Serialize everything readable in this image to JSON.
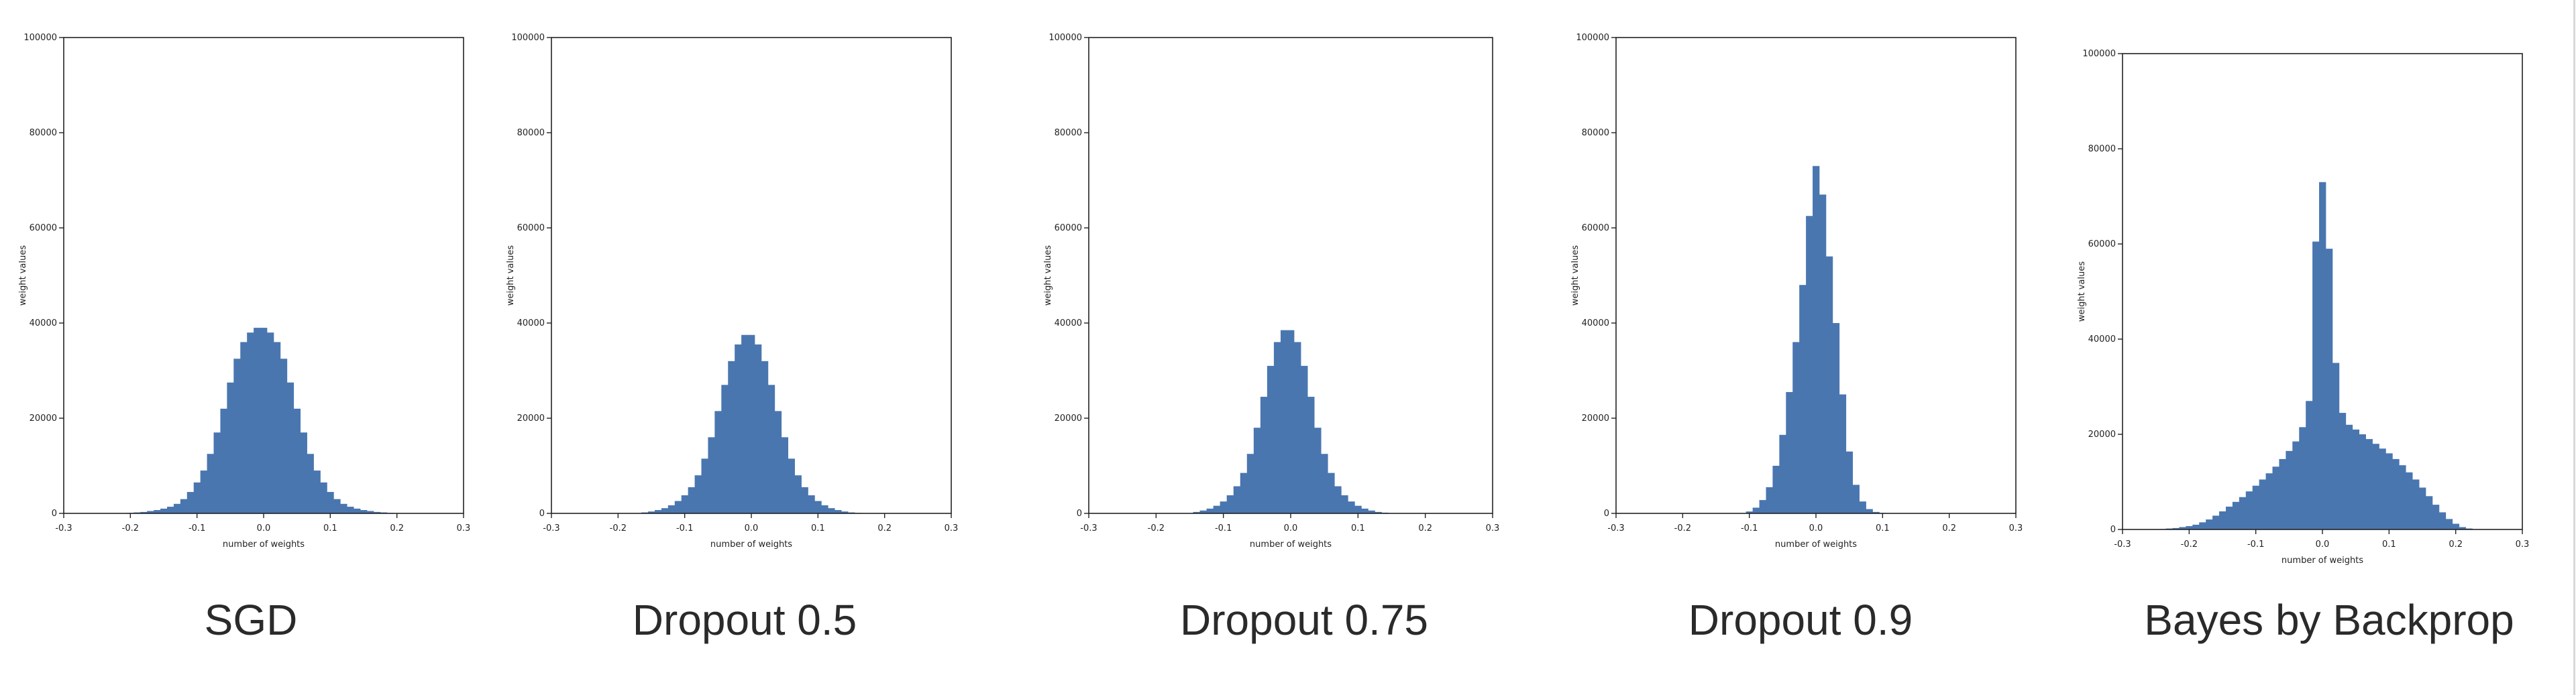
{
  "chart_data": [
    {
      "type": "bar",
      "caption": "SGD",
      "xlabel": "number of weights",
      "ylabel": "weight values",
      "xlim": [
        -0.3,
        0.3
      ],
      "ylim": [
        0,
        100000
      ],
      "xticks": [
        "-0.3",
        "-0.2",
        "-0.1",
        "0.0",
        "0.1",
        "0.2",
        "0.3"
      ],
      "yticks": [
        "0",
        "20000",
        "40000",
        "60000",
        "80000",
        "100000"
      ],
      "bin_centers": [
        -0.2,
        -0.19,
        -0.18,
        -0.17,
        -0.16,
        -0.15,
        -0.14,
        -0.13,
        -0.12,
        -0.11,
        -0.1,
        -0.09,
        -0.08,
        -0.07,
        -0.06,
        -0.05,
        -0.04,
        -0.03,
        -0.02,
        -0.01,
        0.0,
        0.01,
        0.02,
        0.03,
        0.04,
        0.05,
        0.06,
        0.07,
        0.08,
        0.09,
        0.1,
        0.11,
        0.12,
        0.13,
        0.14,
        0.15,
        0.16,
        0.17,
        0.18,
        0.19,
        0.2
      ],
      "values": [
        100,
        200,
        300,
        500,
        700,
        1000,
        1400,
        2000,
        3000,
        4500,
        6500,
        9000,
        12500,
        17000,
        22000,
        27500,
        32500,
        36000,
        38000,
        39000,
        39000,
        38000,
        36000,
        32500,
        27500,
        22000,
        17000,
        12500,
        9000,
        6500,
        4500,
        3000,
        2000,
        1400,
        1000,
        700,
        500,
        300,
        200,
        100,
        60
      ]
    },
    {
      "type": "bar",
      "caption": "Dropout 0.5",
      "xlabel": "number of weights",
      "ylabel": "weight values",
      "xlim": [
        -0.3,
        0.3
      ],
      "ylim": [
        0,
        100000
      ],
      "xticks": [
        "-0.3",
        "-0.2",
        "-0.1",
        "0.0",
        "0.1",
        "0.2",
        "0.3"
      ],
      "yticks": [
        "0",
        "20000",
        "40000",
        "60000",
        "80000",
        "100000"
      ],
      "bin_centers": [
        -0.16,
        -0.15,
        -0.14,
        -0.13,
        -0.12,
        -0.11,
        -0.1,
        -0.09,
        -0.08,
        -0.07,
        -0.06,
        -0.05,
        -0.04,
        -0.03,
        -0.02,
        -0.01,
        0.0,
        0.01,
        0.02,
        0.03,
        0.04,
        0.05,
        0.06,
        0.07,
        0.08,
        0.09,
        0.1,
        0.11,
        0.12,
        0.13,
        0.14,
        0.15,
        0.16
      ],
      "values": [
        200,
        400,
        700,
        1100,
        1700,
        2600,
        3800,
        5500,
        8000,
        11500,
        16000,
        21500,
        27000,
        32000,
        35500,
        37500,
        37500,
        35500,
        32000,
        27000,
        21500,
        16000,
        11500,
        8000,
        5500,
        3800,
        2600,
        1700,
        1100,
        700,
        400,
        200,
        100
      ]
    },
    {
      "type": "bar",
      "caption": "Dropout 0.75",
      "xlabel": "number of weights",
      "ylabel": "weight values",
      "xlim": [
        -0.3,
        0.3
      ],
      "ylim": [
        0,
        100000
      ],
      "xticks": [
        "-0.3",
        "-0.2",
        "-0.1",
        "0.0",
        "0.1",
        "0.2",
        "0.3"
      ],
      "yticks": [
        "0",
        "20000",
        "40000",
        "60000",
        "80000",
        "100000"
      ],
      "bin_centers": [
        -0.14,
        -0.13,
        -0.12,
        -0.11,
        -0.1,
        -0.09,
        -0.08,
        -0.07,
        -0.06,
        -0.05,
        -0.04,
        -0.03,
        -0.02,
        -0.01,
        0.0,
        0.01,
        0.02,
        0.03,
        0.04,
        0.05,
        0.06,
        0.07,
        0.08,
        0.09,
        0.1,
        0.11,
        0.12,
        0.13,
        0.14
      ],
      "values": [
        300,
        600,
        1000,
        1600,
        2500,
        3800,
        5700,
        8500,
        12500,
        18000,
        24500,
        31000,
        36000,
        38500,
        38500,
        36000,
        31000,
        24500,
        18000,
        12500,
        8500,
        5700,
        3800,
        2500,
        1600,
        1000,
        600,
        300,
        150
      ]
    },
    {
      "type": "bar",
      "caption": "Dropout 0.9",
      "xlabel": "number of weights",
      "ylabel": "weight values",
      "xlim": [
        -0.3,
        0.3
      ],
      "ylim": [
        0,
        100000
      ],
      "xticks": [
        "-0.3",
        "-0.2",
        "-0.1",
        "0.0",
        "0.1",
        "0.2",
        "0.3"
      ],
      "yticks": [
        "0",
        "20000",
        "40000",
        "60000",
        "80000",
        "100000"
      ],
      "bin_centers": [
        -0.1,
        -0.09,
        -0.08,
        -0.07,
        -0.06,
        -0.05,
        -0.04,
        -0.03,
        -0.02,
        -0.01,
        0.0,
        0.01,
        0.02,
        0.03,
        0.04,
        0.05,
        0.06,
        0.07,
        0.08,
        0.09,
        0.1
      ],
      "values": [
        400,
        1200,
        2800,
        5500,
        10000,
        16500,
        25500,
        36000,
        48000,
        62500,
        73000,
        67000,
        54000,
        40000,
        25000,
        13000,
        6000,
        2500,
        900,
        300,
        100
      ]
    },
    {
      "type": "bar",
      "caption": "Bayes by Backprop",
      "xlabel": "number of weights",
      "ylabel": "weight values",
      "xlim": [
        -0.3,
        0.3
      ],
      "ylim": [
        0,
        100000
      ],
      "xticks": [
        "-0.3",
        "-0.2",
        "-0.1",
        "0.0",
        "0.1",
        "0.2",
        "0.3"
      ],
      "yticks": [
        "0",
        "20000",
        "40000",
        "60000",
        "80000",
        "100000"
      ],
      "bin_centers": [
        -0.24,
        -0.23,
        -0.22,
        -0.21,
        -0.2,
        -0.19,
        -0.18,
        -0.17,
        -0.16,
        -0.15,
        -0.14,
        -0.13,
        -0.12,
        -0.11,
        -0.1,
        -0.09,
        -0.08,
        -0.07,
        -0.06,
        -0.05,
        -0.04,
        -0.03,
        -0.02,
        -0.01,
        0.0,
        0.01,
        0.02,
        0.03,
        0.04,
        0.05,
        0.06,
        0.07,
        0.08,
        0.09,
        0.1,
        0.11,
        0.12,
        0.13,
        0.14,
        0.15,
        0.16,
        0.17,
        0.18,
        0.19,
        0.2,
        0.21,
        0.22
      ],
      "values": [
        100,
        200,
        300,
        500,
        700,
        1000,
        1500,
        2100,
        2900,
        3800,
        4800,
        5800,
        6800,
        8000,
        9200,
        10500,
        11800,
        13200,
        14800,
        16500,
        18500,
        21500,
        27000,
        60500,
        73000,
        59000,
        35000,
        24500,
        22000,
        21000,
        20000,
        19000,
        18000,
        17000,
        16000,
        14800,
        13500,
        12000,
        10500,
        8800,
        7000,
        5200,
        3600,
        2200,
        1200,
        500,
        200
      ]
    }
  ],
  "colors": {
    "bar": "#4a76b0",
    "axis": "#222222",
    "caption": "#2a2a2a",
    "divider": "#d8d8d8"
  }
}
